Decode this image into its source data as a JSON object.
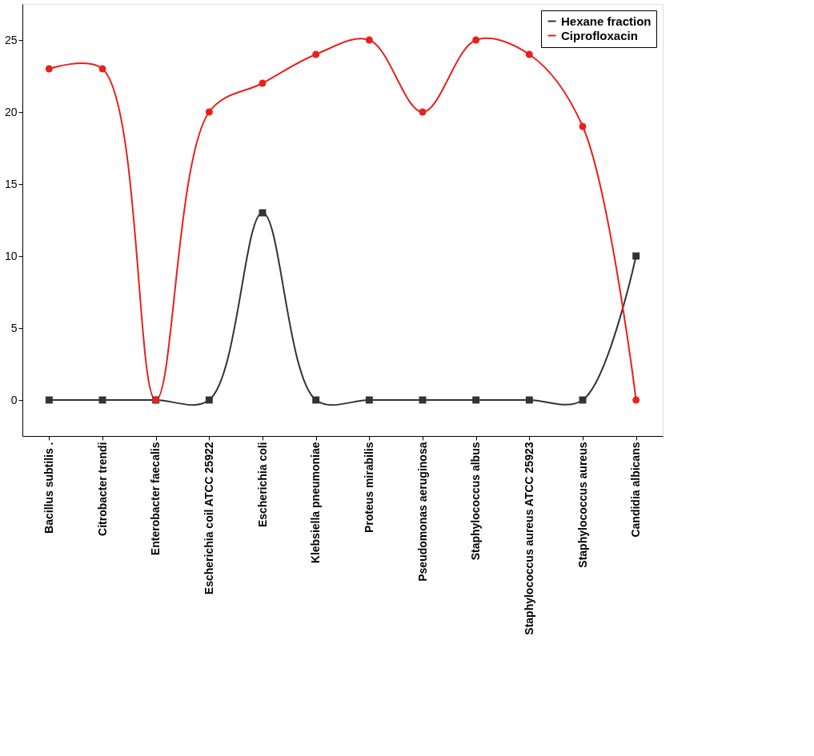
{
  "chart_data": {
    "type": "line",
    "categories": [
      "Bacillus subtilis .",
      "Citrobacter trendi",
      "Enterobacter faecalis",
      "Escherichia coil ATCC 25922",
      "Escherichia coli",
      "Klebsiella pneumoniae",
      "Proteus mirabilis",
      "Pseudomonas aeruginosa",
      "Staphylococcus albus",
      "Staphylococcus aureus ATCC 25923",
      "Staphylococcus aureus",
      "Candidia albicans"
    ],
    "series": [
      {
        "name": "Hexane fraction",
        "color": "#333333",
        "marker": "square",
        "values": [
          0,
          0,
          0,
          0,
          13,
          0,
          0,
          0,
          0,
          0,
          0,
          10
        ]
      },
      {
        "name": "Ciprofloxacin",
        "color": "#e8201c",
        "marker": "circle",
        "values": [
          23,
          23,
          0,
          20,
          22,
          24,
          25,
          20,
          25,
          24,
          19,
          0
        ]
      }
    ],
    "ylim": [
      -2.5,
      27.5
    ],
    "yticks": [
      0,
      5,
      10,
      15,
      20,
      25
    ],
    "grid": false,
    "legend": "top right",
    "line_style": "solid"
  }
}
